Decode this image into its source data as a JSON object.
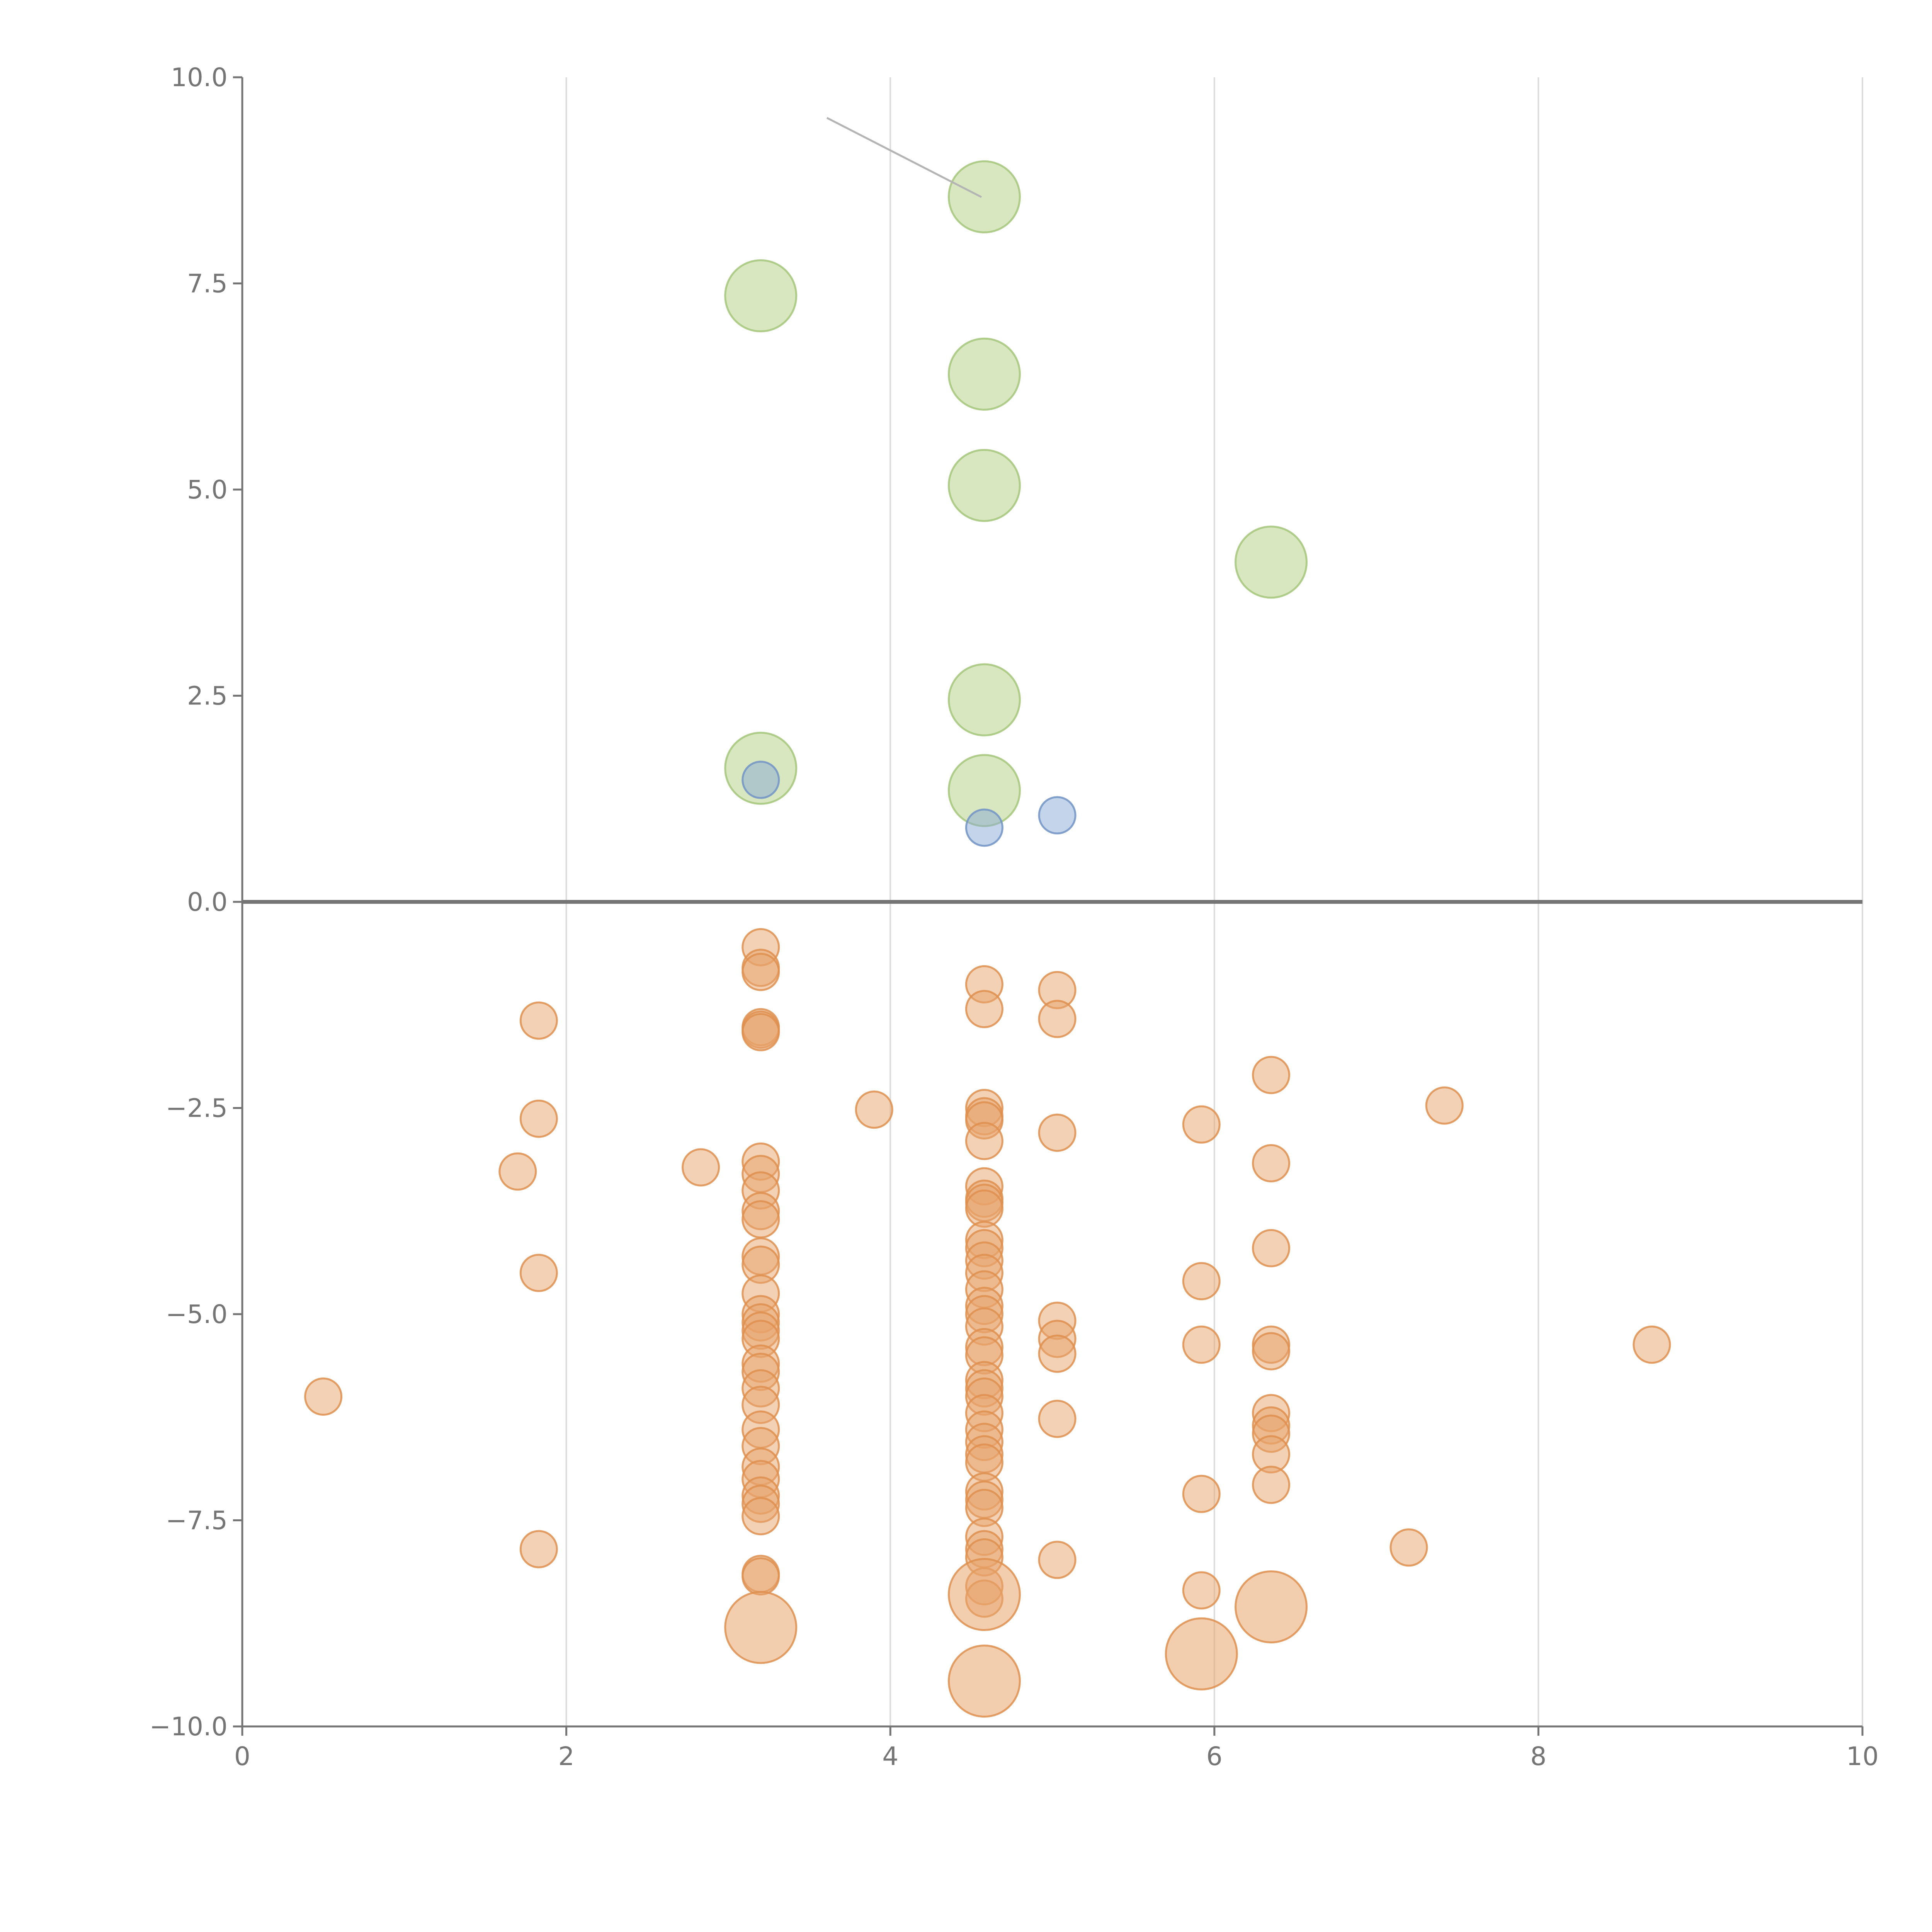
{
  "chart_data": {
    "type": "scatter",
    "title": "",
    "xlabel": "",
    "ylabel": "",
    "xlim": [
      0,
      10
    ],
    "ylim": [
      -10,
      10
    ],
    "x_ticks": [
      "0",
      "2",
      "4",
      "6",
      "8",
      "10"
    ],
    "y_ticks": [
      "10.0",
      "7.5",
      "5.0",
      "2.5",
      "0.0",
      "−2.5",
      "−5.0",
      "−7.5",
      "−10.0"
    ],
    "x_tick_values": [
      0,
      2,
      4,
      6,
      8,
      10
    ],
    "y_tick_values": [
      10,
      7.5,
      5,
      2.5,
      0,
      -2.5,
      -5,
      -7.5,
      -10
    ],
    "grid": "vertical",
    "zero_line": true,
    "legend": "none",
    "series": [
      {
        "color": "#b8d48c",
        "size": "large",
        "points": [
          {
            "x": 4.58,
            "y": 8.55
          },
          {
            "x": 3.2,
            "y": 7.35
          },
          {
            "x": 4.58,
            "y": 6.4
          },
          {
            "x": 4.58,
            "y": 5.05
          },
          {
            "x": 6.35,
            "y": 4.12
          },
          {
            "x": 4.58,
            "y": 2.45
          },
          {
            "x": 3.2,
            "y": 1.62
          },
          {
            "x": 4.58,
            "y": 1.35
          }
        ]
      },
      {
        "color": "#8aa9d6",
        "size": "small",
        "points": [
          {
            "x": 3.2,
            "y": 1.48
          },
          {
            "x": 4.58,
            "y": 0.9
          },
          {
            "x": 5.03,
            "y": 1.05
          }
        ]
      },
      {
        "color": "#e8a46c",
        "size": "small",
        "points": [
          {
            "x": 3.2,
            "y": -0.55
          },
          {
            "x": 3.2,
            "y": -0.8
          },
          {
            "x": 3.2,
            "y": -0.85
          },
          {
            "x": 3.2,
            "y": -1.52
          },
          {
            "x": 3.2,
            "y": -1.55
          },
          {
            "x": 3.2,
            "y": -1.58
          },
          {
            "x": 1.83,
            "y": -1.44
          },
          {
            "x": 4.58,
            "y": -1.0
          },
          {
            "x": 4.58,
            "y": -1.3
          },
          {
            "x": 5.03,
            "y": -1.07
          },
          {
            "x": 5.03,
            "y": -1.42
          },
          {
            "x": 6.35,
            "y": -2.1
          },
          {
            "x": 1.83,
            "y": -2.63
          },
          {
            "x": 3.9,
            "y": -2.52
          },
          {
            "x": 4.58,
            "y": -2.5
          },
          {
            "x": 4.58,
            "y": -2.6
          },
          {
            "x": 4.58,
            "y": -2.65
          },
          {
            "x": 4.58,
            "y": -2.9
          },
          {
            "x": 5.03,
            "y": -2.8
          },
          {
            "x": 5.92,
            "y": -2.7
          },
          {
            "x": 7.42,
            "y": -2.47
          },
          {
            "x": 1.7,
            "y": -3.27
          },
          {
            "x": 2.83,
            "y": -3.22
          },
          {
            "x": 3.2,
            "y": -3.15
          },
          {
            "x": 3.2,
            "y": -3.3
          },
          {
            "x": 3.2,
            "y": -3.5
          },
          {
            "x": 3.2,
            "y": -3.75
          },
          {
            "x": 3.2,
            "y": -3.85
          },
          {
            "x": 4.58,
            "y": -3.45
          },
          {
            "x": 4.58,
            "y": -3.6
          },
          {
            "x": 4.58,
            "y": -3.65
          },
          {
            "x": 4.58,
            "y": -3.72
          },
          {
            "x": 6.35,
            "y": -3.17
          },
          {
            "x": 1.83,
            "y": -4.5
          },
          {
            "x": 3.2,
            "y": -4.3
          },
          {
            "x": 3.2,
            "y": -4.4
          },
          {
            "x": 3.2,
            "y": -4.75
          },
          {
            "x": 4.58,
            "y": -4.1
          },
          {
            "x": 4.58,
            "y": -4.2
          },
          {
            "x": 4.58,
            "y": -4.35
          },
          {
            "x": 4.58,
            "y": -4.5
          },
          {
            "x": 4.58,
            "y": -4.7
          },
          {
            "x": 4.58,
            "y": -4.9
          },
          {
            "x": 5.92,
            "y": -4.6
          },
          {
            "x": 6.35,
            "y": -4.2
          },
          {
            "x": 3.2,
            "y": -5.0
          },
          {
            "x": 3.2,
            "y": -5.1
          },
          {
            "x": 3.2,
            "y": -5.2
          },
          {
            "x": 3.2,
            "y": -5.3
          },
          {
            "x": 3.2,
            "y": -5.6
          },
          {
            "x": 3.2,
            "y": -5.7
          },
          {
            "x": 3.2,
            "y": -5.9
          },
          {
            "x": 3.2,
            "y": -6.1
          },
          {
            "x": 4.58,
            "y": -5.0
          },
          {
            "x": 4.58,
            "y": -5.15
          },
          {
            "x": 4.58,
            "y": -5.4
          },
          {
            "x": 4.58,
            "y": -5.5
          },
          {
            "x": 4.58,
            "y": -5.8
          },
          {
            "x": 4.58,
            "y": -5.9
          },
          {
            "x": 4.58,
            "y": -6.0
          },
          {
            "x": 4.58,
            "y": -6.2
          },
          {
            "x": 5.03,
            "y": -5.08
          },
          {
            "x": 5.03,
            "y": -5.3
          },
          {
            "x": 5.03,
            "y": -5.48
          },
          {
            "x": 5.03,
            "y": -6.27
          },
          {
            "x": 5.92,
            "y": -5.37
          },
          {
            "x": 6.35,
            "y": -5.37
          },
          {
            "x": 6.35,
            "y": -5.45
          },
          {
            "x": 8.7,
            "y": -5.37
          },
          {
            "x": 0.5,
            "y": -6.0
          },
          {
            "x": 3.2,
            "y": -6.4
          },
          {
            "x": 3.2,
            "y": -6.6
          },
          {
            "x": 3.2,
            "y": -6.85
          },
          {
            "x": 3.2,
            "y": -7.0
          },
          {
            "x": 3.2,
            "y": -7.2
          },
          {
            "x": 3.2,
            "y": -7.3
          },
          {
            "x": 3.2,
            "y": -7.45
          },
          {
            "x": 4.58,
            "y": -6.4
          },
          {
            "x": 4.58,
            "y": -6.55
          },
          {
            "x": 4.58,
            "y": -6.7
          },
          {
            "x": 4.58,
            "y": -6.8
          },
          {
            "x": 4.58,
            "y": -7.15
          },
          {
            "x": 4.58,
            "y": -7.25
          },
          {
            "x": 4.58,
            "y": -7.35
          },
          {
            "x": 4.58,
            "y": -7.7
          },
          {
            "x": 4.58,
            "y": -7.85
          },
          {
            "x": 4.58,
            "y": -7.95
          },
          {
            "x": 6.35,
            "y": -6.2
          },
          {
            "x": 6.35,
            "y": -6.35
          },
          {
            "x": 6.35,
            "y": -6.45
          },
          {
            "x": 6.35,
            "y": -6.7
          },
          {
            "x": 6.35,
            "y": -7.07
          },
          {
            "x": 5.92,
            "y": -7.18
          },
          {
            "x": 1.83,
            "y": -7.85
          },
          {
            "x": 3.2,
            "y": -8.15
          },
          {
            "x": 3.2,
            "y": -8.18
          },
          {
            "x": 4.58,
            "y": -8.3
          },
          {
            "x": 4.58,
            "y": -8.45
          },
          {
            "x": 5.03,
            "y": -7.98
          },
          {
            "x": 5.92,
            "y": -8.35
          },
          {
            "x": 7.2,
            "y": -7.83
          }
        ]
      },
      {
        "color": "#e8a46c",
        "size": "large",
        "points": [
          {
            "x": 3.2,
            "y": -8.8
          },
          {
            "x": 4.58,
            "y": -8.4
          },
          {
            "x": 4.58,
            "y": -9.45
          },
          {
            "x": 5.92,
            "y": -9.12
          },
          {
            "x": 6.35,
            "y": -8.55
          }
        ]
      }
    ]
  }
}
